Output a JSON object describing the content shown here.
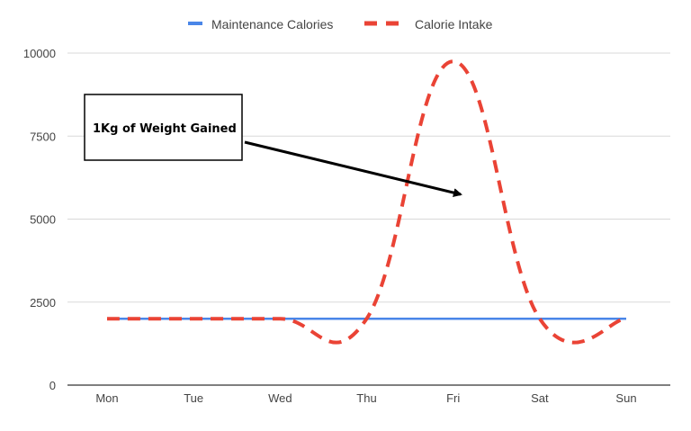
{
  "chart_data": {
    "type": "line",
    "title": "",
    "xlabel": "",
    "ylabel": "",
    "categories": [
      "Mon",
      "Tue",
      "Wed",
      "Thu",
      "Fri",
      "Sat",
      "Sun"
    ],
    "ylim": [
      0,
      10000
    ],
    "yticks": [
      "0",
      "2500",
      "5000",
      "7500",
      "10000"
    ],
    "grid": true,
    "legend_position": "top",
    "smooth": true,
    "series": [
      {
        "name": "Maintenance Calories",
        "values": [
          2000,
          2000,
          2000,
          2000,
          2000,
          2000,
          2000
        ],
        "color": "#4a86e8",
        "style": "solid"
      },
      {
        "name": "Calorie Intake",
        "values": [
          2000,
          2000,
          2000,
          2000,
          9750,
          2000,
          2000
        ],
        "color": "#ea4335",
        "style": "dashed"
      }
    ],
    "annotation": {
      "text": "1Kg of Weight Gained",
      "points_to": "Fri"
    }
  }
}
